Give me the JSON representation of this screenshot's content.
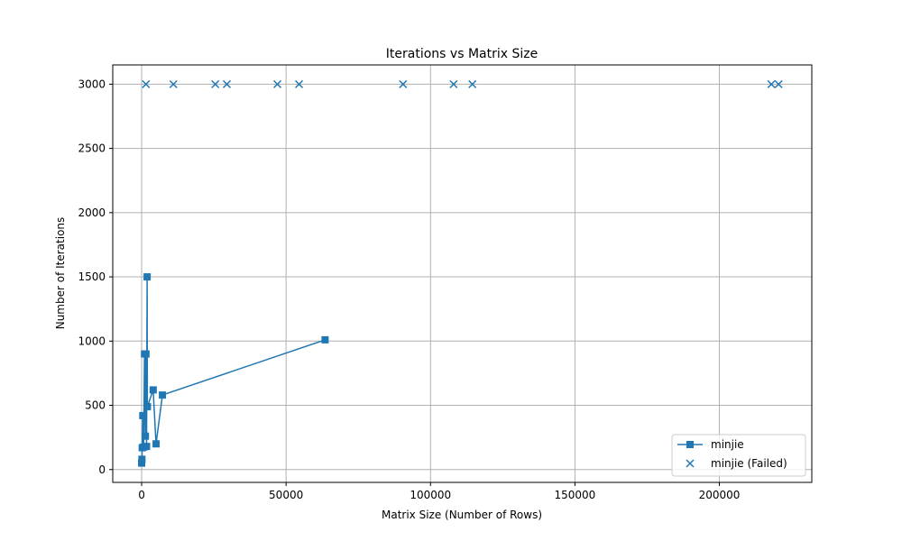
{
  "chart_data": {
    "type": "line",
    "title": "Iterations vs Matrix Size",
    "xlabel": "Matrix Size (Number of Rows)",
    "ylabel": "Number of Iterations",
    "xlim": [
      -10000,
      232000
    ],
    "ylim": [
      -100,
      3150
    ],
    "xticks": [
      0,
      50000,
      100000,
      150000,
      200000
    ],
    "xtick_labels": [
      "0",
      "50000",
      "100000",
      "150000",
      "200000"
    ],
    "yticks": [
      0,
      500,
      1000,
      1500,
      2000,
      2500,
      3000
    ],
    "ytick_labels": [
      "0",
      "500",
      "1000",
      "1500",
      "2000",
      "2500",
      "3000"
    ],
    "grid": true,
    "legend_position": "lower-right",
    "colors": {
      "series": "#1f77b4",
      "grid": "#b0b0b0",
      "axis": "#000000"
    },
    "series": [
      {
        "name": "minjie",
        "marker": "square",
        "line": true,
        "points": [
          [
            0,
            50
          ],
          [
            100,
            80
          ],
          [
            200,
            170
          ],
          [
            400,
            420
          ],
          [
            700,
            175
          ],
          [
            1000,
            900
          ],
          [
            1300,
            260
          ],
          [
            1500,
            900
          ],
          [
            1700,
            180
          ],
          [
            1900,
            1500
          ],
          [
            2000,
            490
          ],
          [
            4000,
            620
          ],
          [
            5000,
            200
          ],
          [
            7200,
            580
          ],
          [
            63500,
            1010
          ]
        ]
      },
      {
        "name": "minjie (Failed)",
        "marker": "x",
        "line": false,
        "points": [
          [
            1500,
            3000
          ],
          [
            11000,
            3000
          ],
          [
            25500,
            3000
          ],
          [
            29500,
            3000
          ],
          [
            47000,
            3000
          ],
          [
            54500,
            3000
          ],
          [
            90500,
            3000
          ],
          [
            108000,
            3000
          ],
          [
            114500,
            3000
          ],
          [
            218000,
            3000
          ],
          [
            220500,
            3000
          ]
        ]
      }
    ]
  }
}
